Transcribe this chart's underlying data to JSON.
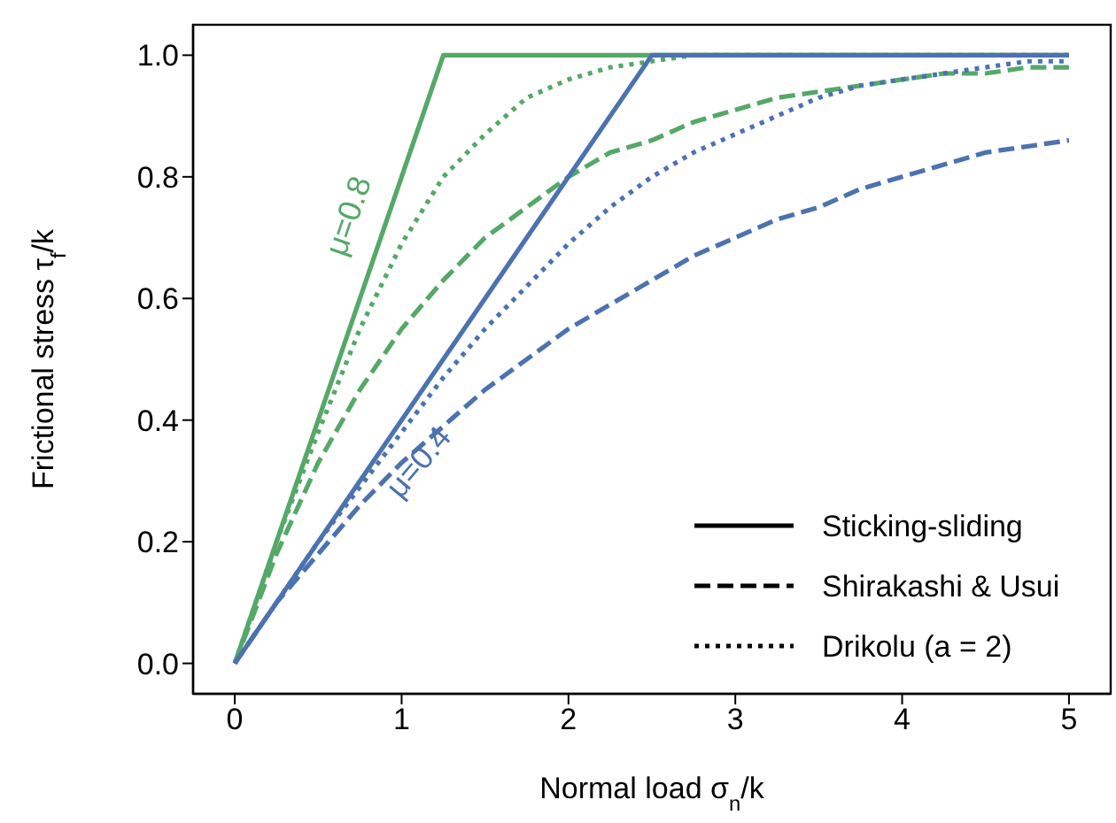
{
  "chart_data": {
    "type": "line",
    "xlabel": "Normal load σ$_{n}$/k",
    "ylabel": "Frictional stress τ$_{f}$/k",
    "xlim": [
      -0.25,
      5.25
    ],
    "xticks": [
      0,
      1,
      2,
      3,
      4,
      5
    ],
    "ylim": [
      -0.05,
      1.05
    ],
    "yticks": [
      {
        "value": 0,
        "label": "0.0"
      },
      {
        "value": 0.2,
        "label": "0.2"
      },
      {
        "value": 0.4,
        "label": "0.4"
      },
      {
        "value": 0.6,
        "label": "0.6"
      },
      {
        "value": 0.8,
        "label": "0.8"
      },
      {
        "value": 1,
        "label": "1.0"
      }
    ],
    "grid": false,
    "marker": "none",
    "annotations": [
      "μ=0.8",
      "μ=0.4",
      "Sticking-sliding",
      "Shirakashi & Usui",
      "Drikolu (a = 2)"
    ],
    "series": [
      {
        "color": "#55a868",
        "line_style": "solid",
        "x": [
          0,
          1.25,
          5
        ],
        "values": [
          0,
          1,
          1
        ]
      },
      {
        "color": "#55a868",
        "line_style": "dashed",
        "x": [
          0,
          0.25,
          0.5,
          0.75,
          1,
          1.25,
          1.5,
          1.75,
          2,
          2.25,
          2.5,
          2.75,
          3,
          3.25,
          3.5,
          3.75,
          4,
          4.25,
          4.5,
          4.75,
          5
        ],
        "values": [
          0,
          0.18,
          0.33,
          0.45,
          0.55,
          0.63,
          0.7,
          0.75,
          0.8,
          0.84,
          0.86,
          0.89,
          0.91,
          0.93,
          0.94,
          0.95,
          0.96,
          0.97,
          0.97,
          0.98,
          0.98
        ]
      },
      {
        "color": "#55a868",
        "line_style": "dotted",
        "x": [
          0,
          0.25,
          0.5,
          0.75,
          1,
          1.25,
          1.5,
          1.75,
          2,
          2.25,
          2.5,
          2.75,
          3,
          3.25,
          3.5,
          3.75,
          4,
          4.25,
          4.5,
          4.75,
          5
        ],
        "values": [
          0,
          0.2,
          0.38,
          0.55,
          0.69,
          0.8,
          0.87,
          0.93,
          0.96,
          0.98,
          0.99,
          1,
          1,
          1,
          1,
          1,
          1,
          1,
          1,
          1,
          1
        ]
      },
      {
        "color": "#4c72b0",
        "line_style": "solid",
        "x": [
          0,
          2.5,
          5
        ],
        "values": [
          0,
          1,
          1
        ]
      },
      {
        "color": "#4c72b0",
        "line_style": "dashed",
        "x": [
          0,
          0.25,
          0.5,
          0.75,
          1,
          1.25,
          1.5,
          1.75,
          2,
          2.25,
          2.5,
          2.75,
          3,
          3.25,
          3.5,
          3.75,
          4,
          4.25,
          4.5,
          4.75,
          5
        ],
        "values": [
          0,
          0.1,
          0.18,
          0.26,
          0.33,
          0.39,
          0.45,
          0.5,
          0.55,
          0.59,
          0.63,
          0.67,
          0.7,
          0.73,
          0.75,
          0.78,
          0.8,
          0.82,
          0.84,
          0.85,
          0.86
        ]
      },
      {
        "color": "#4c72b0",
        "line_style": "dotted",
        "x": [
          0,
          0.25,
          0.5,
          0.75,
          1,
          1.25,
          1.5,
          1.75,
          2,
          2.25,
          2.5,
          2.75,
          3,
          3.25,
          3.5,
          3.75,
          4,
          4.25,
          4.5,
          4.75,
          5
        ],
        "values": [
          0,
          0.1,
          0.2,
          0.29,
          0.38,
          0.47,
          0.55,
          0.62,
          0.69,
          0.75,
          0.8,
          0.84,
          0.87,
          0.9,
          0.93,
          0.95,
          0.96,
          0.97,
          0.98,
          0.99,
          0.99
        ]
      }
    ]
  }
}
